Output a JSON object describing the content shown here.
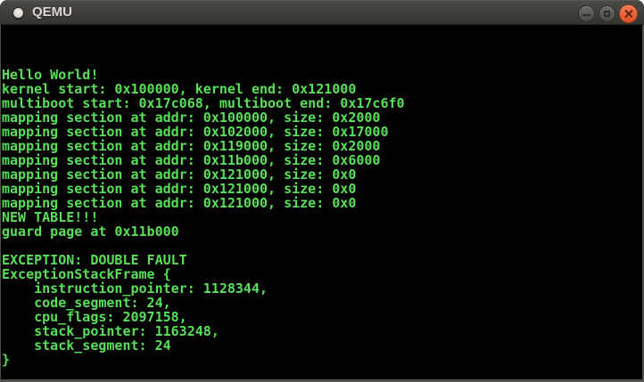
{
  "window": {
    "title": "QEMU",
    "icons": {
      "app": "window-icon",
      "minimize": "minimize-icon",
      "maximize": "maximize-icon",
      "close": "close-icon"
    }
  },
  "colors": {
    "terminal_text": "#57e057",
    "terminal_bg": "#000000",
    "titlebar_bg": "#3b3a36",
    "titlebar_text": "#dcd9d2",
    "close_button": "#e6602f",
    "window_edge": "#514f4b"
  },
  "terminal": {
    "lines": [
      "",
      "",
      "",
      "Hello World!",
      "kernel start: 0x100000, kernel end: 0x121000",
      "multiboot start: 0x17c068, multiboot end: 0x17c6f0",
      "mapping section at addr: 0x100000, size: 0x2000",
      "mapping section at addr: 0x102000, size: 0x17000",
      "mapping section at addr: 0x119000, size: 0x2000",
      "mapping section at addr: 0x11b000, size: 0x6000",
      "mapping section at addr: 0x121000, size: 0x0",
      "mapping section at addr: 0x121000, size: 0x0",
      "mapping section at addr: 0x121000, size: 0x0",
      "NEW TABLE!!!",
      "guard page at 0x11b000",
      "",
      "EXCEPTION: DOUBLE FAULT",
      "ExceptionStackFrame {",
      "    instruction_pointer: 1128344,",
      "    code_segment: 24,",
      "    cpu_flags: 2097158,",
      "    stack_pointer: 1163248,",
      "    stack_segment: 24",
      "}",
      ""
    ]
  }
}
